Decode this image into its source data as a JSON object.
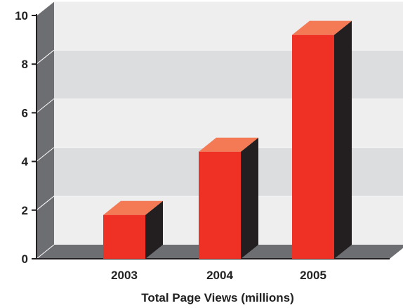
{
  "chart_data": {
    "type": "bar",
    "title": "",
    "xlabel": "Total Page Views (millions)",
    "ylabel": "",
    "categories": [
      "2003",
      "2004",
      "2005"
    ],
    "values": [
      1.8,
      4.4,
      9.2
    ],
    "ylim": [
      0,
      10
    ],
    "yticks": [
      "0",
      "2",
      "4",
      "6",
      "8",
      "10"
    ],
    "grid": true,
    "style": "3d",
    "colors": {
      "bar_front": "#ee3124",
      "bar_top": "#f47a56",
      "bar_side": "#231f20",
      "wall_left": "#6d6e71",
      "floor": "#6d6e71",
      "band_light": "#eeeeef",
      "band_dark": "#dcdddf"
    }
  }
}
